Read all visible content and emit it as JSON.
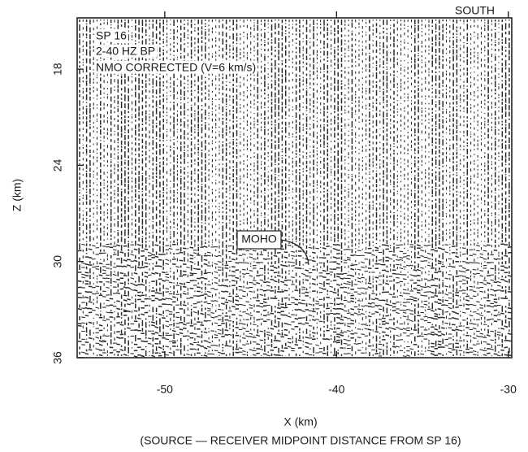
{
  "chart_data": {
    "type": "seismic",
    "xlabel": "X (km)",
    "xlabel_note": "(SOURCE — RECEIVER MIDPOINT DISTANCE FROM SP 16)",
    "ylabel": "Z (km)",
    "xlim": [
      -55.1,
      -29.8
    ],
    "xticks": [
      -50,
      -40,
      -30
    ],
    "ylim": [
      14.8,
      36
    ],
    "yticks": [
      18,
      24,
      30,
      36
    ],
    "y_inverted": true,
    "annotations": [
      "SOUTH",
      "SP 16",
      "2-40 HZ BP",
      "NMO CORRECTED (V=6 km/s)",
      "MOHO"
    ]
  }
}
